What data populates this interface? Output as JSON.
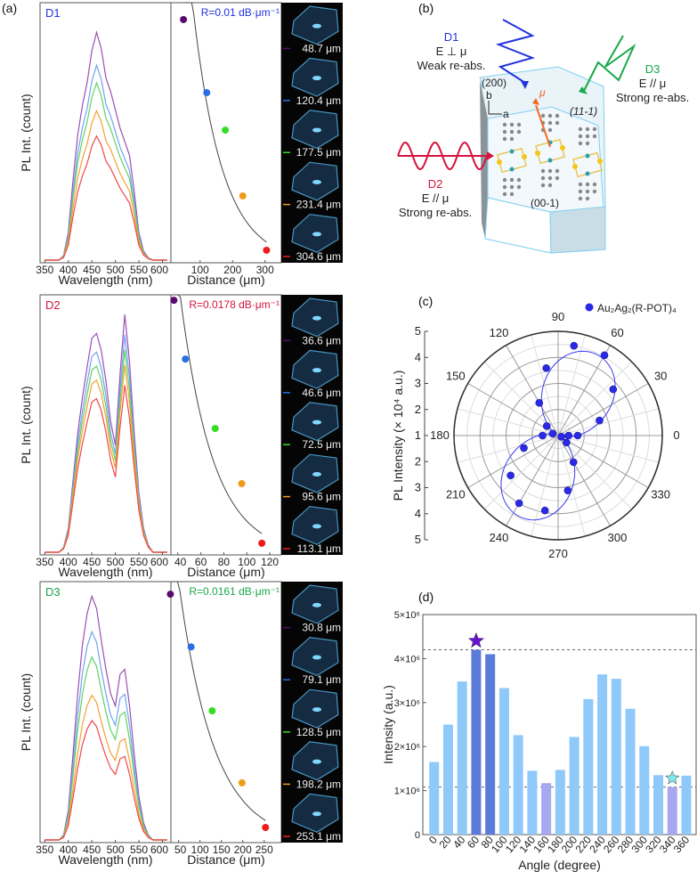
{
  "panel_labels": {
    "a": "(a)",
    "b": "(b)",
    "c": "(c)",
    "d": "(d)"
  },
  "colors": {
    "spectra": [
      "#9b4fb4",
      "#6fa3f5",
      "#5fd35f",
      "#f5a030",
      "#f04848"
    ],
    "points": [
      "#5a0a6e",
      "#2a6ee6",
      "#33dd22",
      "#f09a1a",
      "#ee1c1c"
    ],
    "D1": "#2233dd",
    "D2": "#d4143c",
    "D3": "#18a84a"
  },
  "chart_data": [
    {
      "type": "line",
      "panel": "a",
      "label": "D1",
      "xlabel": "Wavelength (nm)",
      "ylabel": "PL Int. (count)",
      "xlim": [
        340,
        618
      ],
      "ylim": [
        0,
        1
      ],
      "xticks": [
        350,
        400,
        450,
        500,
        550,
        600
      ],
      "wavelengths": [
        350,
        360,
        370,
        380,
        390,
        400,
        410,
        420,
        430,
        440,
        450,
        460,
        470,
        480,
        490,
        500,
        510,
        520,
        530,
        540,
        550,
        560,
        570,
        580,
        590,
        600,
        610,
        620
      ],
      "profile": [
        0,
        0,
        0,
        0,
        0.02,
        0.12,
        0.35,
        0.55,
        0.68,
        0.78,
        0.92,
        1.0,
        0.93,
        0.8,
        0.74,
        0.66,
        0.58,
        0.52,
        0.46,
        0.3,
        0.12,
        0.04,
        0.01,
        0,
        0,
        0,
        0,
        0
      ],
      "series_peaks": [
        0.9,
        0.77,
        0.7,
        0.59,
        0.49
      ]
    },
    {
      "type": "scatter",
      "panel": "a",
      "annotation": "R=0.01 dB·μm⁻¹",
      "xlabel": "Distance (μm)",
      "xlim": [
        10,
        350
      ],
      "ylim": [
        0,
        1
      ],
      "xticks": [
        100,
        200,
        300
      ],
      "points": [
        {
          "x": 48.7,
          "y": 0.935,
          "label": "48.7 μm"
        },
        {
          "x": 120.4,
          "y": 0.654,
          "label": "120.4 μm"
        },
        {
          "x": 177.5,
          "y": 0.51,
          "label": "177.5 μm"
        },
        {
          "x": 231.4,
          "y": 0.257,
          "label": "231.4 μm"
        },
        {
          "x": 304.6,
          "y": 0.048,
          "label": "304.6 μm"
        }
      ]
    },
    {
      "type": "line",
      "panel": "a",
      "label": "D2",
      "xlabel": "Wavelength (nm)",
      "ylabel": "PL Int. (count)",
      "xlim": [
        340,
        618
      ],
      "ylim": [
        0,
        1
      ],
      "xticks": [
        350,
        400,
        450,
        500,
        550,
        600
      ],
      "wavelengths": [
        350,
        360,
        370,
        380,
        390,
        400,
        410,
        420,
        430,
        440,
        450,
        460,
        470,
        480,
        490,
        500,
        510,
        520,
        530,
        540,
        550,
        560,
        570,
        580,
        590,
        600,
        610,
        620
      ],
      "profile": [
        0,
        0,
        0,
        0,
        0.02,
        0.1,
        0.3,
        0.5,
        0.65,
        0.78,
        0.9,
        0.92,
        0.85,
        0.72,
        0.55,
        0.45,
        0.75,
        1.0,
        0.8,
        0.5,
        0.25,
        0.1,
        0.03,
        0,
        0,
        0,
        0,
        0
      ],
      "series_peaks": [
        0.94,
        0.86,
        0.8,
        0.74,
        0.66
      ]
    },
    {
      "type": "scatter",
      "panel": "a",
      "annotation": "R=0.0178 dB·μm⁻¹",
      "xlabel": "Distance (μm)",
      "xlim": [
        34,
        130
      ],
      "ylim": [
        0,
        1
      ],
      "xticks": [
        40,
        60,
        80,
        100,
        120
      ],
      "points": [
        {
          "x": 36.6,
          "y": 0.979,
          "label": "36.6 μm"
        },
        {
          "x": 46.6,
          "y": 0.753,
          "label": "46.6 μm"
        },
        {
          "x": 72.5,
          "y": 0.486,
          "label": "72.5 μm"
        },
        {
          "x": 95.6,
          "y": 0.274,
          "label": "95.6 μm"
        },
        {
          "x": 113.1,
          "y": 0.045,
          "label": "113.1 μm"
        }
      ]
    },
    {
      "type": "line",
      "panel": "a",
      "label": "D3",
      "xlabel": "Wavelength (nm)",
      "ylabel": "PL Int. (count)",
      "xlim": [
        340,
        618
      ],
      "ylim": [
        0,
        1
      ],
      "xticks": [
        350,
        400,
        450,
        500,
        550,
        600
      ],
      "wavelengths": [
        350,
        360,
        370,
        380,
        390,
        400,
        410,
        420,
        430,
        440,
        450,
        460,
        470,
        480,
        490,
        500,
        510,
        520,
        530,
        540,
        550,
        560,
        570,
        580,
        590,
        600,
        610,
        620
      ],
      "profile": [
        0,
        0,
        0,
        0,
        0.02,
        0.12,
        0.35,
        0.6,
        0.8,
        0.93,
        1.0,
        0.95,
        0.82,
        0.7,
        0.6,
        0.55,
        0.68,
        0.7,
        0.55,
        0.35,
        0.18,
        0.07,
        0.02,
        0,
        0,
        0,
        0,
        0
      ],
      "series_peaks": [
        0.96,
        0.82,
        0.72,
        0.57,
        0.47
      ]
    },
    {
      "type": "scatter",
      "panel": "a",
      "annotation": "R=0.0161 dB·μm⁻¹",
      "xlabel": "Distance (μm)",
      "xlim": [
        32,
        290
      ],
      "ylim": [
        0,
        1
      ],
      "xticks": [
        50,
        100,
        150,
        200,
        250
      ],
      "points": [
        {
          "x": 30.8,
          "y": 0.952,
          "label": "30.8 μm"
        },
        {
          "x": 79.1,
          "y": 0.75,
          "label": "79.1 μm"
        },
        {
          "x": 128.5,
          "y": 0.505,
          "label": "128.5 μm"
        },
        {
          "x": 198.2,
          "y": 0.229,
          "label": "198.2 μm"
        },
        {
          "x": 253.1,
          "y": 0.058,
          "label": "253.1 μm"
        }
      ]
    },
    {
      "type": "polar",
      "panel": "c",
      "legend": "Au₂Ag₂(R-POT)₄",
      "legend_color": "#2a2ae6",
      "ylabel": "PL Intensity (× 10⁴ a.u.)",
      "rlim": [
        1,
        5
      ],
      "radial_tick_labels": [
        "5",
        "4",
        "3",
        "2",
        "1",
        "2",
        "3",
        "4",
        "5"
      ],
      "angle_ticks": [
        0,
        30,
        60,
        90,
        120,
        150,
        180,
        210,
        240,
        270,
        300,
        330
      ],
      "points": [
        [
          0,
          1.75
        ],
        [
          20,
          2.69
        ],
        [
          40,
          3.76
        ],
        [
          60,
          4.56
        ],
        [
          80,
          4.5
        ],
        [
          100,
          3.63
        ],
        [
          120,
          2.45
        ],
        [
          140,
          1.57
        ],
        [
          160,
          1.22
        ],
        [
          180,
          1.6
        ],
        [
          200,
          2.4
        ],
        [
          220,
          3.38
        ],
        [
          240,
          4.0
        ],
        [
          260,
          3.92
        ],
        [
          280,
          3.14
        ],
        [
          300,
          2.18
        ],
        [
          320,
          1.42
        ],
        [
          340,
          1.13
        ],
        [
          360,
          1.4
        ]
      ]
    },
    {
      "type": "bar",
      "panel": "d",
      "xlabel": "Angle (degree)",
      "ylabel": "Intensity (a.u.)",
      "ylim": [
        0,
        5000000
      ],
      "yticks": [
        0,
        1000000,
        2000000,
        3000000,
        4000000,
        5000000
      ],
      "ytick_labels": [
        "0",
        "1×10⁶",
        "2×10⁶",
        "3×10⁶",
        "4×10⁶",
        "5×10⁶"
      ],
      "categories": [
        "0",
        "20",
        "40",
        "60",
        "80",
        "100",
        "120",
        "140",
        "160",
        "180",
        "200",
        "220",
        "240",
        "260",
        "280",
        "300",
        "320",
        "340",
        "360"
      ],
      "values": [
        1650000,
        2500000,
        3480000,
        4200000,
        4100000,
        3330000,
        2260000,
        1450000,
        1170000,
        1470000,
        2220000,
        3080000,
        3640000,
        3540000,
        2860000,
        2010000,
        1350000,
        1080000,
        1340000
      ],
      "bar_colors": {
        "default": "#8ec9f9",
        "max": "#5b7bdb",
        "min": "#a8a8f0"
      },
      "highlight_max": [
        "60",
        "80"
      ],
      "highlight_min": [
        "160",
        "340"
      ],
      "reference_lines": [
        4200000,
        1080000
      ],
      "star_max_color": "#6a0fd4",
      "star_min_color": "#7fe9ee"
    }
  ],
  "diagram": {
    "d1": {
      "title": "D1",
      "line1": "E ⊥ μ",
      "line2": "Weak re-abs."
    },
    "d2": {
      "title": "D2",
      "line1": "E // μ",
      "line2": "Strong re-abs."
    },
    "d3": {
      "title": "D3",
      "line1": "E // μ",
      "line2": "Strong re-abs."
    },
    "face_200": "(200)",
    "face_11_1": "(11-1)",
    "face_00_1": "(00-1)",
    "axis_b": "b",
    "axis_a": "a",
    "dipole": "μ"
  }
}
